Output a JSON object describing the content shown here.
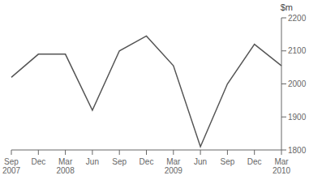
{
  "chart_data": {
    "type": "line",
    "ylabel": "$m",
    "categories": [
      "Sep\n2007",
      "Dec",
      "Mar\n2008",
      "Jun",
      "Sep",
      "Dec",
      "Mar\n2009",
      "Jun",
      "Sep",
      "Dec",
      "Mar\n2010"
    ],
    "values": [
      2020,
      2090,
      2090,
      1920,
      2100,
      2145,
      2055,
      1810,
      2000,
      2120,
      2055
    ],
    "color": "#555555",
    "ylim": [
      1800,
      2200
    ],
    "yticks": [
      1800,
      1900,
      2000,
      2100,
      2200
    ],
    "grid": false
  }
}
